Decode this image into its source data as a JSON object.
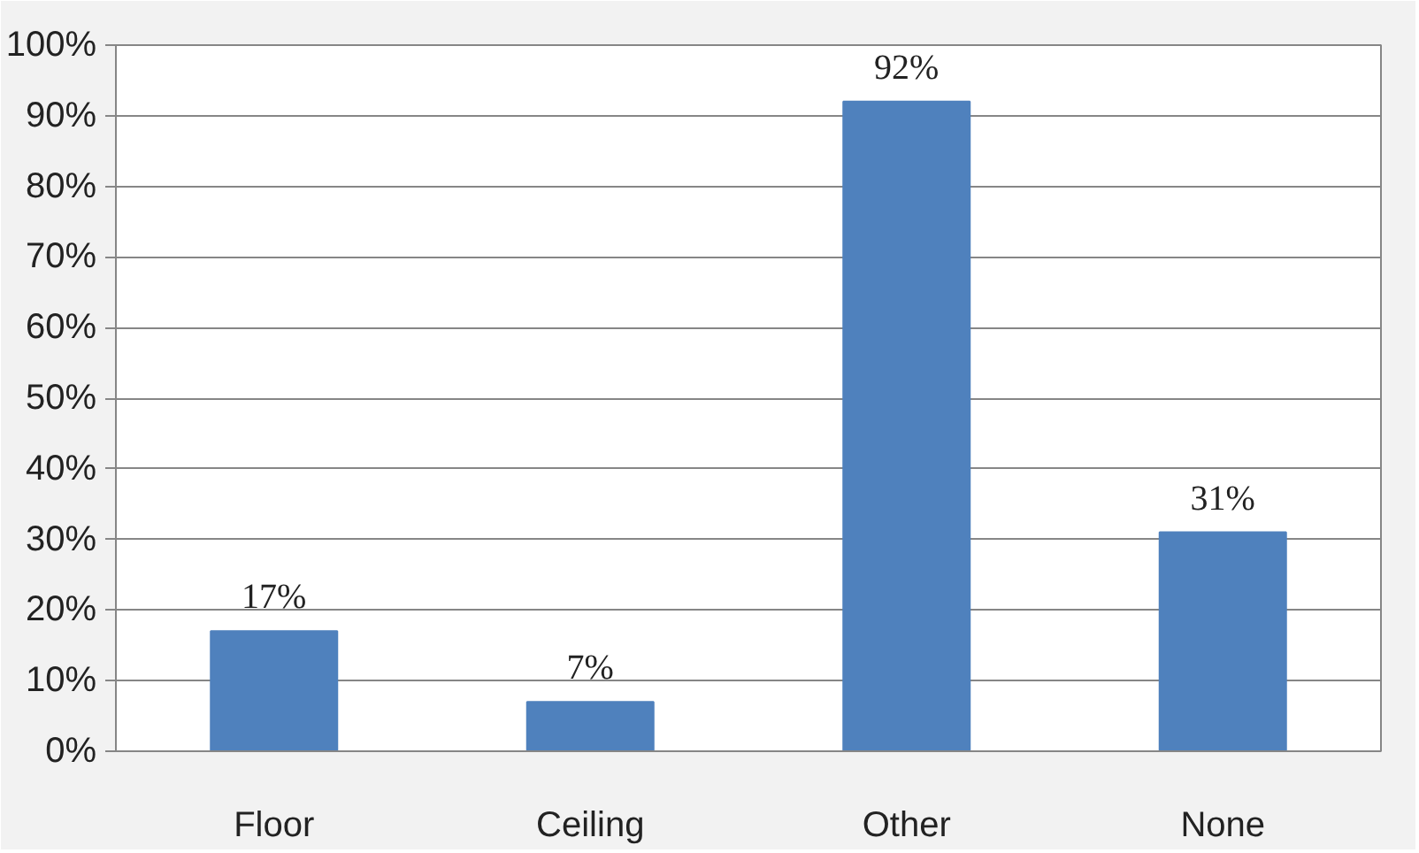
{
  "chart_data": {
    "type": "bar",
    "categories": [
      "Floor",
      "Ceiling",
      "Other",
      "None"
    ],
    "values": [
      17,
      7,
      92,
      31
    ],
    "color": "#4f81bd",
    "value_labels": [
      "17%",
      "7%",
      "92%",
      "31%"
    ],
    "ylim": [
      0,
      100
    ],
    "yticks": [
      {
        "value": 0,
        "label": "0%"
      },
      {
        "value": 10,
        "label": "10%"
      },
      {
        "value": 20,
        "label": "20%"
      },
      {
        "value": 30,
        "label": "30%"
      },
      {
        "value": 40,
        "label": "40%"
      },
      {
        "value": 50,
        "label": "50%"
      },
      {
        "value": 60,
        "label": "60%"
      },
      {
        "value": 70,
        "label": "70%"
      },
      {
        "value": 80,
        "label": "80%"
      },
      {
        "value": 90,
        "label": "90%"
      },
      {
        "value": 100,
        "label": "100%"
      }
    ],
    "grid": "y"
  }
}
